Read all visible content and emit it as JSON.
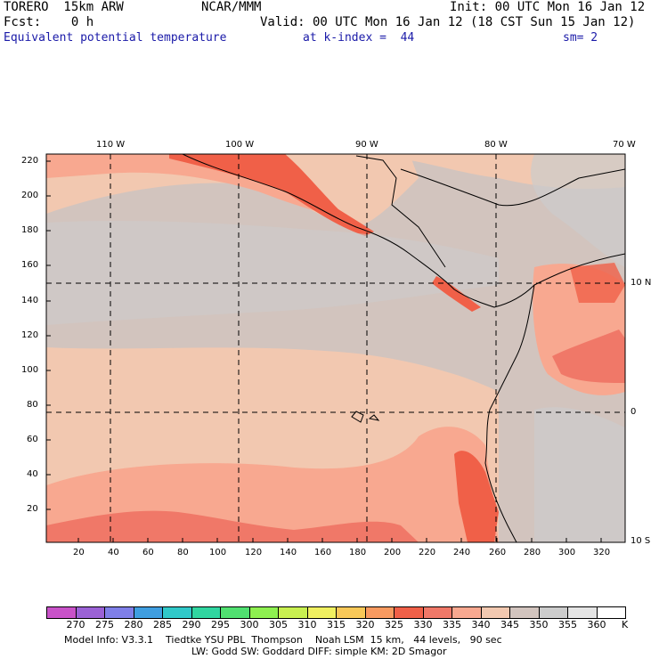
{
  "header": {
    "model": "TORERO  15km ARW",
    "org": "NCAR/MMM",
    "init": "Init: 00 UTC Mon 16 Jan 12",
    "fcst": "Fcst:    0 h",
    "valid": "Valid: 00 UTC Mon 16 Jan 12 (18 CST Sun 15 Jan 12)",
    "field": "Equivalent potential temperature",
    "level": "at k-index =  44",
    "smooth": "sm= 2"
  },
  "map": {
    "lon_labels": [
      "110 W",
      "100 W",
      "90 W",
      "80 W",
      "70 W"
    ],
    "lat_labels": [
      "10 N",
      "0",
      "10 S"
    ],
    "x_ticks": [
      "20",
      "40",
      "60",
      "80",
      "100",
      "120",
      "140",
      "160",
      "180",
      "200",
      "220",
      "240",
      "260",
      "280",
      "300",
      "320"
    ],
    "y_ticks": [
      "220",
      "200",
      "180",
      "160",
      "140",
      "120",
      "100",
      "80",
      "60",
      "40",
      "20"
    ]
  },
  "legend": {
    "values": [
      "270",
      "275",
      "280",
      "285",
      "290",
      "295",
      "300",
      "305",
      "310",
      "315",
      "320",
      "325",
      "330",
      "335",
      "340",
      "345",
      "350",
      "355",
      "360"
    ],
    "unit": "K",
    "colors": [
      "#c852c8",
      "#9b62d6",
      "#7f7fe8",
      "#3f9ee0",
      "#30c8c8",
      "#30d6a0",
      "#50e070",
      "#8ef050",
      "#c8f050",
      "#f0f060",
      "#f8c858",
      "#f89a60",
      "#f06048",
      "#f07868",
      "#f8a890",
      "#f2c8b0",
      "#d2c4be",
      "#cccccc",
      "#e4e4e4",
      "#ffffff"
    ]
  },
  "footer": {
    "line1": "Model Info: V3.3.1    Tiedtke YSU PBL  Thompson    Noah LSM  15 km,   44 levels,   90 sec",
    "line2": "LW: Godd SW: Goddard DIFF: simple KM: 2D Smagor"
  }
}
